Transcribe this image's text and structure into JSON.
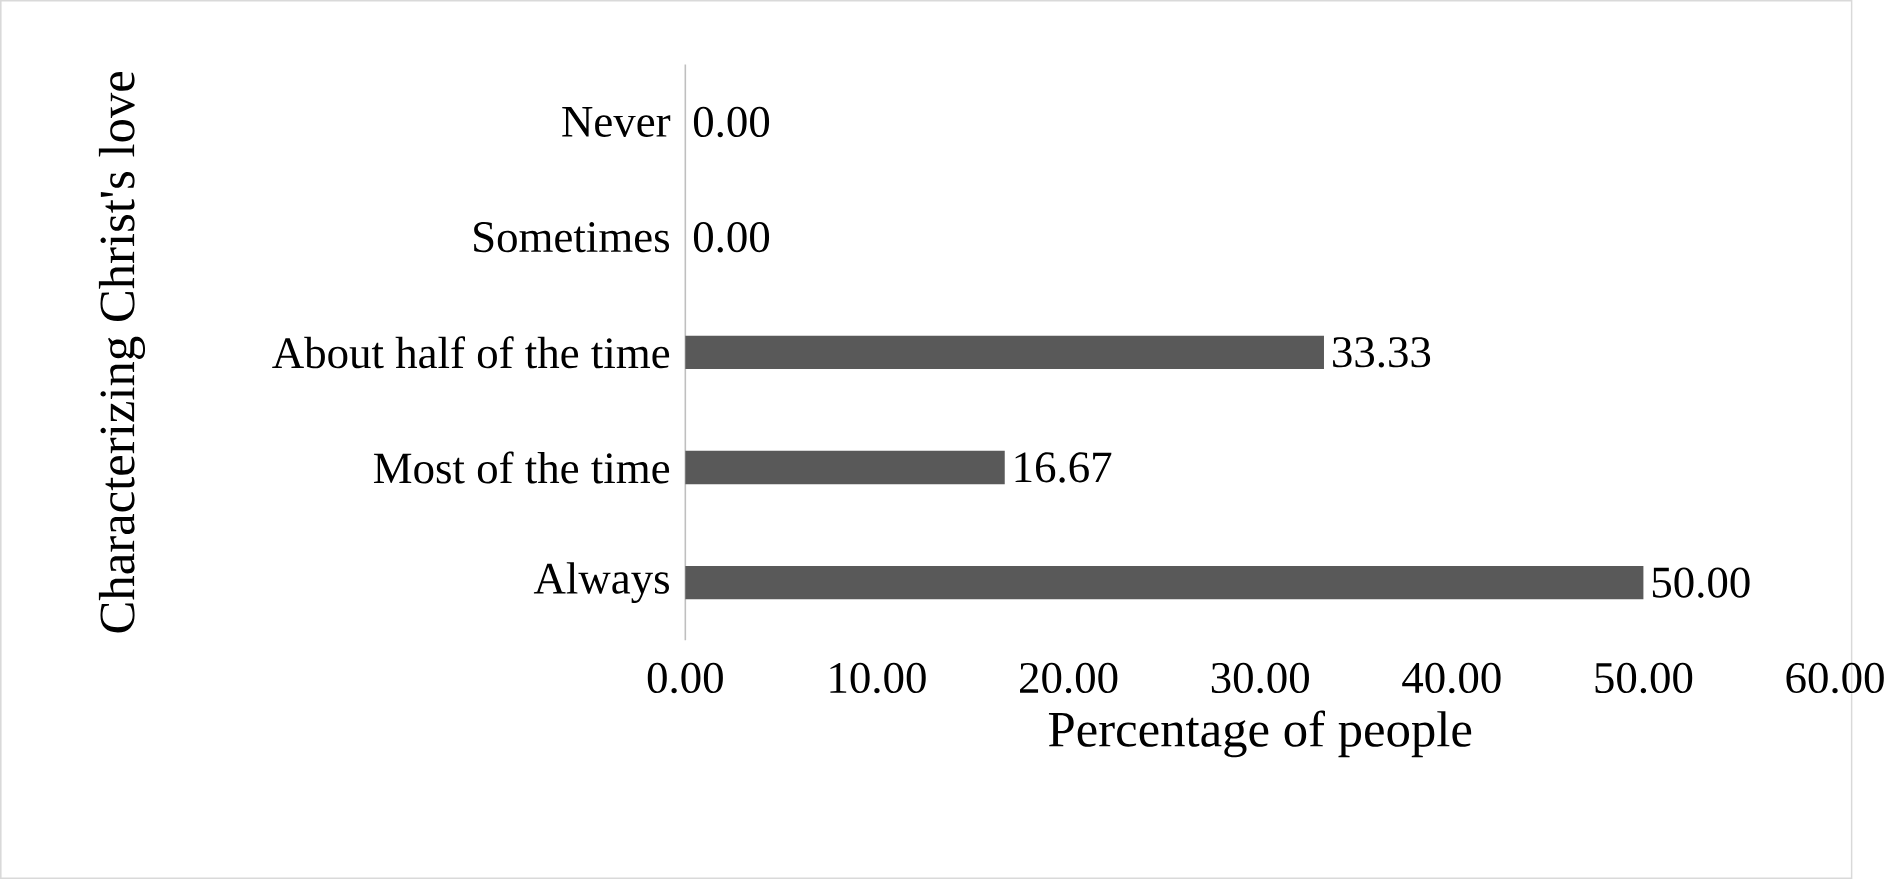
{
  "chart_data": {
    "type": "bar",
    "orientation": "horizontal",
    "categories": [
      "Never",
      "Sometimes",
      "About half of the time",
      "Most of the time",
      "Always"
    ],
    "values": [
      0,
      0,
      33.33,
      16.67,
      50
    ],
    "value_labels": [
      "0.00",
      "0.00",
      "33.33",
      "16.67",
      "50.00"
    ],
    "color": "#595959",
    "xlabel": "Percentage of people",
    "ylabel": "Characterizing Christ's love",
    "xlim": [
      0,
      60
    ],
    "xticks": [
      {
        "value": 0,
        "label": "0.00"
      },
      {
        "value": 10,
        "label": "10.00"
      },
      {
        "value": 20,
        "label": "20.00"
      },
      {
        "value": 30,
        "label": "30.00"
      },
      {
        "value": 40,
        "label": "40.00"
      },
      {
        "value": 50,
        "label": "50.00"
      },
      {
        "value": 60,
        "label": "60.00"
      }
    ],
    "grid": false
  }
}
